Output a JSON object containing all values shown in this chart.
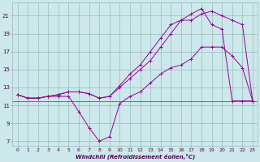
{
  "xlabel": "Windchill (Refroidissement éolien,°C)",
  "bg_color": "#cce8ea",
  "grid_color": "#99bbbb",
  "line_color": "#990099",
  "xlim": [
    -0.5,
    23.5
  ],
  "ylim": [
    6.5,
    22.5
  ],
  "yticks": [
    7,
    9,
    11,
    13,
    15,
    17,
    19,
    21
  ],
  "xticks": [
    0,
    1,
    2,
    3,
    4,
    5,
    6,
    7,
    8,
    9,
    10,
    11,
    12,
    13,
    14,
    15,
    16,
    17,
    18,
    19,
    20,
    21,
    22,
    23
  ],
  "line1_x": [
    0,
    1,
    2,
    3,
    4,
    5,
    6,
    7,
    8,
    9,
    10,
    11,
    12,
    13,
    14,
    15,
    16,
    17,
    18,
    19,
    20,
    21,
    22,
    23
  ],
  "line1_y": [
    12.2,
    11.8,
    11.8,
    12.0,
    12.0,
    12.0,
    10.3,
    8.5,
    7.0,
    7.5,
    11.2,
    12.0,
    12.5,
    13.5,
    14.5,
    15.2,
    15.5,
    16.2,
    17.5,
    17.5,
    17.5,
    16.5,
    15.2,
    11.5
  ],
  "line2_x": [
    0,
    1,
    2,
    3,
    4,
    5,
    6,
    7,
    8,
    9,
    10,
    11,
    12,
    13,
    14,
    15,
    16,
    17,
    18,
    19,
    20,
    21,
    22,
    23
  ],
  "line2_y": [
    12.2,
    11.8,
    11.8,
    12.0,
    12.2,
    12.5,
    12.5,
    12.3,
    11.8,
    12.0,
    13.0,
    14.0,
    15.0,
    16.0,
    17.5,
    19.0,
    20.5,
    20.5,
    21.2,
    21.5,
    21.0,
    20.5,
    20.0,
    11.5
  ],
  "line3_x": [
    0,
    1,
    2,
    3,
    4,
    5,
    6,
    7,
    8,
    9,
    10,
    11,
    12,
    13,
    14,
    15,
    16,
    17,
    18,
    19,
    20,
    21,
    22,
    23
  ],
  "line3_y": [
    12.2,
    11.8,
    11.8,
    12.0,
    12.2,
    12.5,
    12.5,
    12.3,
    11.8,
    12.0,
    13.2,
    14.5,
    15.5,
    17.0,
    18.5,
    20.0,
    20.5,
    21.2,
    21.8,
    20.0,
    19.5,
    11.5,
    11.5,
    11.5
  ],
  "hline_y": 11.5
}
